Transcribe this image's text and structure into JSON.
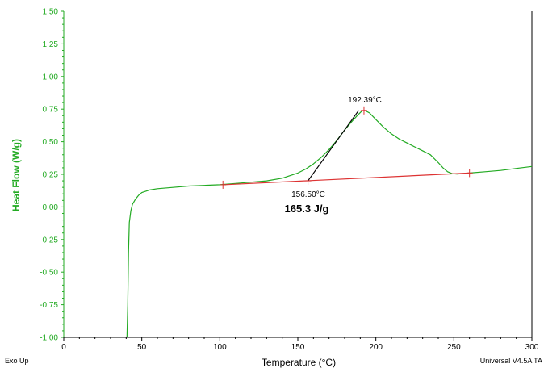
{
  "chart_data": {
    "type": "line",
    "title": "",
    "xlabel": "Temperature (°C)",
    "ylabel": "Heat Flow (W/g)",
    "xlim": [
      0,
      300
    ],
    "ylim": [
      -1.0,
      1.5
    ],
    "x_ticks": [
      0,
      50,
      100,
      150,
      200,
      250,
      300
    ],
    "y_ticks": [
      -1.0,
      -0.75,
      -0.5,
      -0.25,
      0.0,
      0.25,
      0.5,
      0.75,
      1.0,
      1.25,
      1.5
    ],
    "y_tick_labels": [
      "-1.00",
      "-0.75",
      "-0.50",
      "-0.25",
      "0.00",
      "0.25",
      "0.50",
      "0.75",
      "1.00",
      "1.25",
      "1.50"
    ],
    "grid": false,
    "series": [
      {
        "color": "#22aa22",
        "x": [
          40.5,
          41,
          41.5,
          42,
          43,
          44,
          46,
          48,
          50,
          55,
          60,
          70,
          80,
          90,
          100,
          110,
          120,
          130,
          140,
          150,
          155,
          160,
          165,
          170,
          175,
          180,
          185,
          188,
          191,
          193,
          196,
          200,
          205,
          210,
          215,
          220,
          225,
          230,
          235,
          240,
          243,
          246,
          249,
          252,
          255,
          260,
          270,
          280,
          290,
          300
        ],
        "y": [
          -1.0,
          -0.75,
          -0.35,
          -0.12,
          -0.03,
          0.02,
          0.06,
          0.09,
          0.11,
          0.13,
          0.14,
          0.15,
          0.16,
          0.165,
          0.17,
          0.18,
          0.19,
          0.2,
          0.22,
          0.26,
          0.29,
          0.33,
          0.38,
          0.44,
          0.51,
          0.59,
          0.66,
          0.7,
          0.735,
          0.74,
          0.72,
          0.67,
          0.61,
          0.56,
          0.52,
          0.49,
          0.46,
          0.43,
          0.4,
          0.34,
          0.3,
          0.27,
          0.255,
          0.252,
          0.255,
          0.26,
          0.27,
          0.28,
          0.295,
          0.31
        ]
      }
    ],
    "baseline": {
      "color": "#dd3333",
      "x": [
        102,
        260
      ],
      "y": [
        0.17,
        0.26
      ]
    },
    "onset_tangent": {
      "color": "#000000",
      "x": [
        156.5,
        189
      ],
      "y": [
        0.2,
        0.74
      ]
    },
    "markers": [
      {
        "x": 102,
        "y": 0.17
      },
      {
        "x": 156.5,
        "y": 0.2
      },
      {
        "x": 192.39,
        "y": 0.74
      },
      {
        "x": 260,
        "y": 0.26
      }
    ],
    "annotations": {
      "peak_label": "192.39°C",
      "onset_label": "156.50°C",
      "enthalpy_label": "165.3 J/g"
    },
    "colors": {
      "axis_y": "#22aa22",
      "axis_x": "#000000",
      "curve": "#22aa22",
      "baseline": "#dd3333",
      "tangent": "#000000"
    }
  },
  "footer": {
    "left": "Exo Up",
    "right": "Universal V4.5A TA"
  }
}
